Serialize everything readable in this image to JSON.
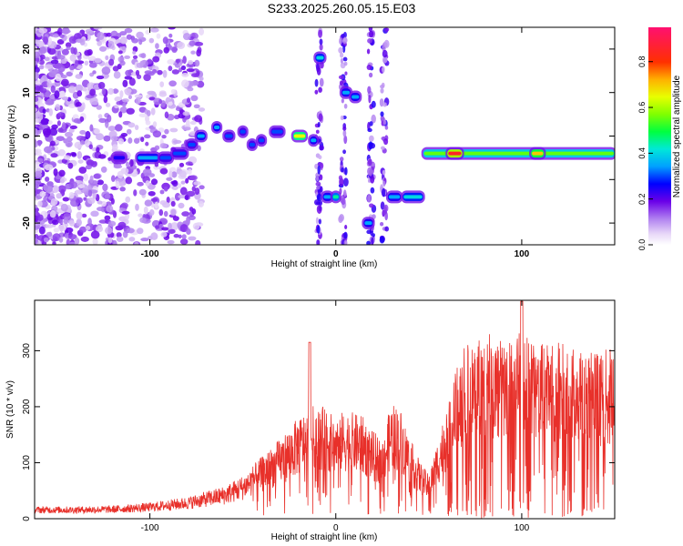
{
  "title": "S233.2025.260.05.15.E03",
  "chart_data": [
    {
      "type": "heatmap",
      "xlabel": "Height of straight line (km)",
      "ylabel": "Frequency (Hz)",
      "xlim": [
        -162,
        150
      ],
      "ylim": [
        -25,
        25
      ],
      "xticks": [
        -100,
        0,
        100
      ],
      "yticks": [
        -20,
        -10,
        0,
        10,
        20
      ],
      "colorbar": {
        "label": "Normalized spectral amplitude",
        "range": [
          0,
          0.95
        ],
        "ticks": [
          0.0,
          0.2,
          0.4,
          0.6,
          0.8
        ],
        "tick_labels": [
          "0.0",
          "0.2",
          "0.4",
          "0.6",
          "0.8"
        ]
      },
      "features": [
        {
          "x": [
            -120,
            -113
          ],
          "freq": -5,
          "amp": 0.25
        },
        {
          "x": [
            -107,
            -95
          ],
          "freq": -5,
          "amp": 0.35
        },
        {
          "x": [
            -95,
            -88
          ],
          "freq": -5,
          "amp": 0.3
        },
        {
          "x": [
            -88,
            -80
          ],
          "freq": -4,
          "amp": 0.3
        },
        {
          "x": [
            -80,
            -75
          ],
          "freq": -2,
          "amp": 0.3
        },
        {
          "x": [
            -75,
            -70
          ],
          "freq": 0,
          "amp": 0.35
        },
        {
          "x": [
            -66,
            -62
          ],
          "freq": 2,
          "amp": 0.35
        },
        {
          "x": [
            -60,
            -55
          ],
          "freq": 0,
          "amp": 0.3
        },
        {
          "x": [
            -52,
            -48
          ],
          "freq": 1,
          "amp": 0.3
        },
        {
          "x": [
            -47,
            -43
          ],
          "freq": -2,
          "amp": 0.3
        },
        {
          "x": [
            -42,
            -38
          ],
          "freq": -1,
          "amp": 0.3
        },
        {
          "x": [
            -35,
            -28
          ],
          "freq": 1,
          "amp": 0.3
        },
        {
          "x": [
            -23,
            -16
          ],
          "freq": 0,
          "amp": 0.65
        },
        {
          "x": [
            -14,
            -10
          ],
          "freq": -1,
          "amp": 0.35
        },
        {
          "x": [
            -11,
            -6
          ],
          "freq": 18,
          "amp": 0.4
        },
        {
          "x": [
            -7,
            -2
          ],
          "freq": -14,
          "amp": 0.35
        },
        {
          "x": [
            -2,
            2
          ],
          "freq": -14,
          "amp": 0.45
        },
        {
          "x": [
            3,
            8
          ],
          "freq": 10,
          "amp": 0.35
        },
        {
          "x": [
            8,
            13
          ],
          "freq": 9,
          "amp": 0.35
        },
        {
          "x": [
            15,
            20
          ],
          "freq": -20,
          "amp": 0.35
        },
        {
          "x": [
            28,
            35
          ],
          "freq": -14,
          "amp": 0.35
        },
        {
          "x": [
            36,
            47
          ],
          "freq": -14,
          "amp": 0.4
        },
        {
          "x": [
            47,
            150
          ],
          "freq": -4,
          "amp": 0.55
        },
        {
          "x": [
            60,
            68
          ],
          "freq": -4,
          "amp": 0.85
        },
        {
          "x": [
            105,
            112
          ],
          "freq": -4,
          "amp": 0.7
        }
      ]
    },
    {
      "type": "line",
      "xlabel": "Height of straight line (km)",
      "ylabel": "SNR (10 * v/v)",
      "xlim": [
        -162,
        150
      ],
      "ylim": [
        0,
        390
      ],
      "xticks": [
        -100,
        0,
        100
      ],
      "yticks": [
        0,
        100,
        200,
        300
      ],
      "color": "#e8302a",
      "envelope": {
        "x": [
          -162,
          -140,
          -120,
          -100,
          -80,
          -60,
          -50,
          -40,
          -30,
          -20,
          -15,
          -10,
          -5,
          0,
          5,
          10,
          15,
          20,
          25,
          30,
          35,
          40,
          45,
          50,
          55,
          60,
          65,
          70,
          75,
          80,
          90,
          100,
          110,
          120,
          130,
          140,
          150
        ],
        "y": [
          17,
          17,
          18,
          22,
          30,
          45,
          60,
          85,
          110,
          140,
          150,
          160,
          150,
          140,
          150,
          145,
          140,
          120,
          110,
          160,
          150,
          110,
          80,
          60,
          110,
          160,
          210,
          250,
          270,
          260,
          245,
          260,
          240,
          245,
          235,
          230,
          235
        ]
      }
    }
  ]
}
